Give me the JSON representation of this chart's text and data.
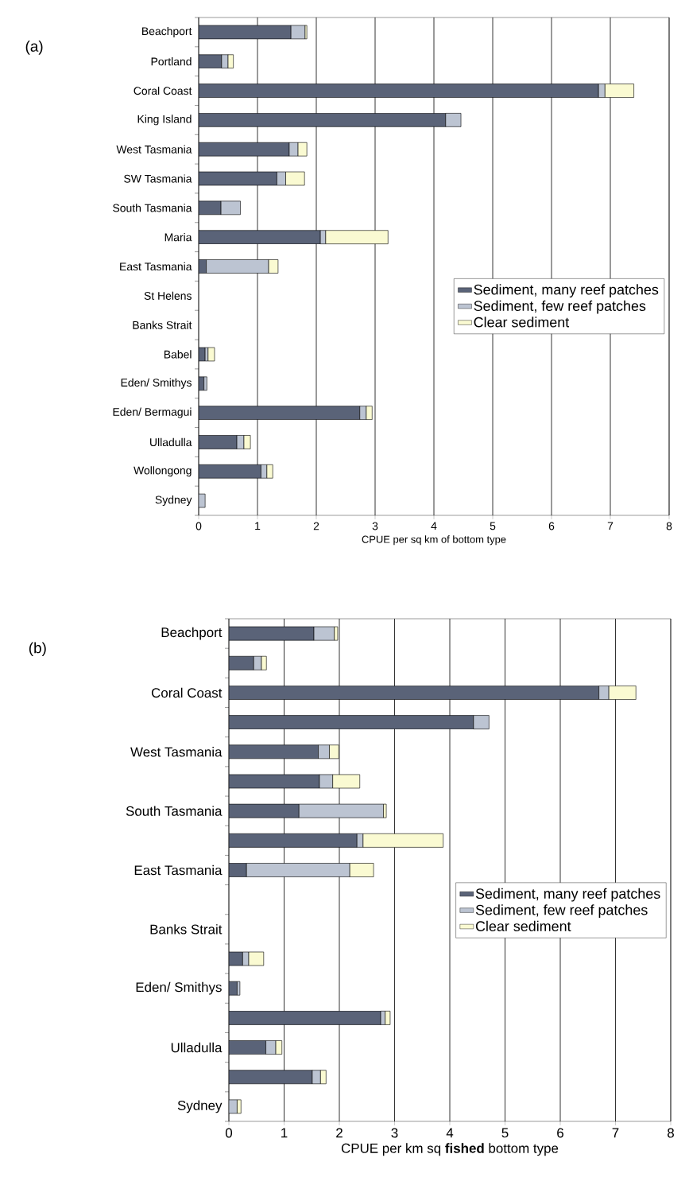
{
  "chart_data": [
    {
      "type": "bar",
      "title": "(a)",
      "xlabel": "CPUE per sq km of bottom type",
      "orientation": "horizontal",
      "stacked": true,
      "grid": "x",
      "legend": "right",
      "categories": [
        "Beachport",
        "Portland",
        "Coral Coast",
        "King Island",
        "West Tasmania",
        "SW Tasmania",
        "South Tasmania",
        "Maria",
        "East Tasmania",
        "St Helens",
        "Banks Strait",
        "Babel",
        "Eden/ Smithys",
        "Eden/ Bermagui",
        "Ulladulla",
        "Wollongong",
        "Sydney"
      ],
      "xlim": [
        0,
        8
      ],
      "xticks": [
        0,
        1,
        2,
        3,
        4,
        5,
        6,
        7,
        8
      ],
      "series": [
        {
          "name": "Sediment, many reef patches",
          "color": "#5a6378",
          "values": [
            1.57,
            0.39,
            6.8,
            4.2,
            1.54,
            1.33,
            0.38,
            2.07,
            0.13,
            null,
            null,
            0.11,
            0.09,
            2.74,
            0.65,
            1.06,
            null
          ]
        },
        {
          "name": "Sediment, few reef patches",
          "color": "#bcc4d2",
          "values": [
            0.24,
            0.11,
            0.11,
            0.26,
            0.15,
            0.15,
            0.33,
            0.09,
            1.06,
            null,
            null,
            0.05,
            0.05,
            0.11,
            0.12,
            0.1,
            0.11
          ]
        },
        {
          "name": "Clear sediment",
          "color": "#fafad2",
          "values": [
            0.03,
            0.09,
            0.49,
            null,
            0.15,
            0.32,
            null,
            1.06,
            0.16,
            null,
            null,
            0.11,
            null,
            0.1,
            0.11,
            0.1,
            null
          ]
        }
      ]
    },
    {
      "type": "bar",
      "title": "(b)",
      "xlabel": "CPUE per km sq **fished** bottom type",
      "orientation": "horizontal",
      "stacked": true,
      "grid": "x",
      "legend": "right",
      "categories": [
        "Beachport",
        null,
        "Coral Coast",
        null,
        "West Tasmania",
        null,
        "South Tasmania",
        null,
        "East Tasmania",
        null,
        "Banks Strait",
        null,
        "Eden/ Smithys",
        null,
        "Ulladulla",
        null,
        "Sydney"
      ],
      "xlim": [
        0,
        8
      ],
      "xticks": [
        0,
        1,
        2,
        3,
        4,
        5,
        6,
        7,
        8
      ],
      "series": [
        {
          "name": "Sediment, many reef patches",
          "color": "#5a6378",
          "values": [
            1.54,
            0.45,
            6.7,
            4.43,
            1.62,
            1.64,
            1.27,
            2.32,
            0.32,
            null,
            null,
            0.25,
            0.15,
            2.75,
            0.67,
            1.51,
            null
          ]
        },
        {
          "name": "Sediment, few reef patches",
          "color": "#bcc4d2",
          "values": [
            0.37,
            0.14,
            0.18,
            0.28,
            0.2,
            0.24,
            1.53,
            0.11,
            1.87,
            null,
            null,
            0.11,
            0.05,
            0.08,
            0.18,
            0.15,
            0.15
          ]
        },
        {
          "name": "Clear sediment",
          "color": "#fafad2",
          "values": [
            0.06,
            0.09,
            0.49,
            null,
            0.17,
            0.49,
            0.05,
            1.45,
            0.43,
            null,
            null,
            0.27,
            null,
            0.09,
            0.11,
            0.1,
            0.07
          ]
        }
      ]
    }
  ]
}
